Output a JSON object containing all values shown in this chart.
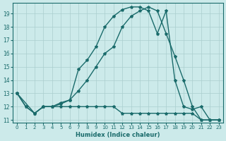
{
  "xlabel": "Humidex (Indice chaleur)",
  "bg_color": "#cceaea",
  "grid_color": "#aacece",
  "line_color": "#1a6b6b",
  "xlim": [
    -0.5,
    23.5
  ],
  "ylim": [
    10.8,
    19.8
  ],
  "yticks": [
    11,
    12,
    13,
    14,
    15,
    16,
    17,
    18,
    19
  ],
  "xticks": [
    0,
    1,
    2,
    3,
    4,
    5,
    6,
    7,
    8,
    9,
    10,
    11,
    12,
    13,
    14,
    15,
    16,
    17,
    18,
    19,
    20,
    21,
    22,
    23
  ],
  "line1": {
    "x": [
      0,
      1,
      2,
      3,
      4,
      5,
      6,
      7,
      8,
      9,
      10,
      11,
      12,
      13,
      14,
      15,
      16,
      17,
      18,
      19,
      20,
      21,
      22,
      23
    ],
    "y": [
      13,
      12,
      11.5,
      12,
      12,
      12,
      12,
      12,
      12,
      12,
      12,
      12,
      11.5,
      11.5,
      11.5,
      11.5,
      11.5,
      11.5,
      11.5,
      11.5,
      11.5,
      11,
      11,
      11
    ]
  },
  "line2": {
    "x": [
      0,
      1,
      2,
      3,
      4,
      5,
      6,
      7,
      8,
      9,
      10,
      11,
      12,
      13,
      14,
      15,
      16,
      17,
      18,
      19,
      20,
      21,
      22,
      23
    ],
    "y": [
      13,
      12,
      11.5,
      12,
      12,
      12.2,
      12.5,
      13.2,
      14,
      15,
      16,
      16.5,
      18,
      18.8,
      19.2,
      19.5,
      19.2,
      17.5,
      15.8,
      14,
      12,
      11,
      11,
      11
    ]
  },
  "line3": {
    "x": [
      0,
      2,
      3,
      4,
      5,
      6,
      7,
      8,
      9,
      10,
      11,
      12,
      13,
      14,
      15,
      16,
      17,
      18,
      19,
      20,
      21,
      22,
      23
    ],
    "y": [
      13,
      11.5,
      12,
      12,
      12.3,
      12.5,
      14.8,
      15.5,
      16.5,
      18,
      18.8,
      19.3,
      19.5,
      19.5,
      19.2,
      17.5,
      19.2,
      14,
      12,
      11.8,
      12,
      11,
      11
    ]
  }
}
